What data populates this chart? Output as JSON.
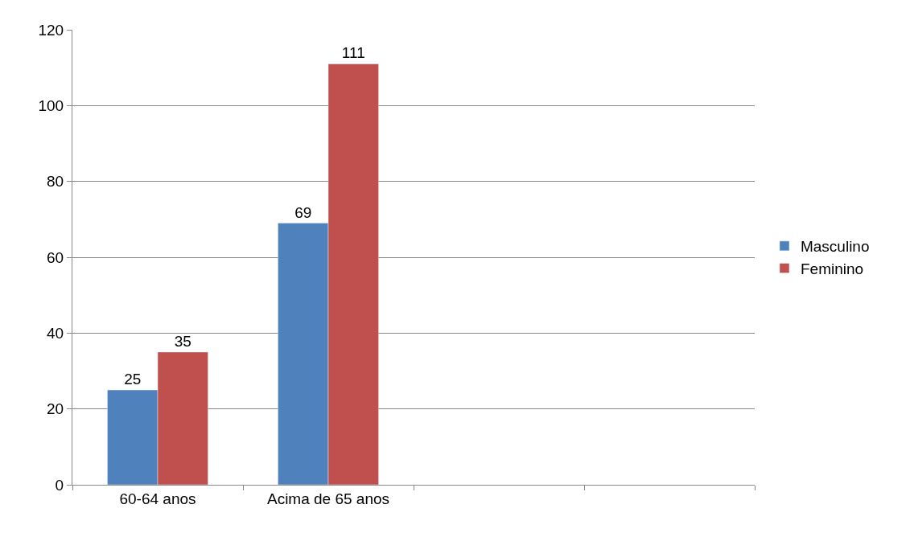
{
  "chart_data": {
    "type": "bar",
    "categories": [
      "60-64 anos",
      "Acima de 65 anos",
      null,
      null
    ],
    "series": [
      {
        "name": "Masculino",
        "color": "#4f81bd",
        "values": [
          25,
          69,
          null,
          null
        ]
      },
      {
        "name": "Feminino",
        "color": "#c0504d",
        "values": [
          35,
          111,
          null,
          null
        ]
      }
    ],
    "ylim": [
      0,
      120
    ],
    "yticks": [
      0,
      20,
      40,
      60,
      80,
      100,
      120
    ],
    "grid": "y",
    "legend": "right",
    "data_labels": true
  }
}
